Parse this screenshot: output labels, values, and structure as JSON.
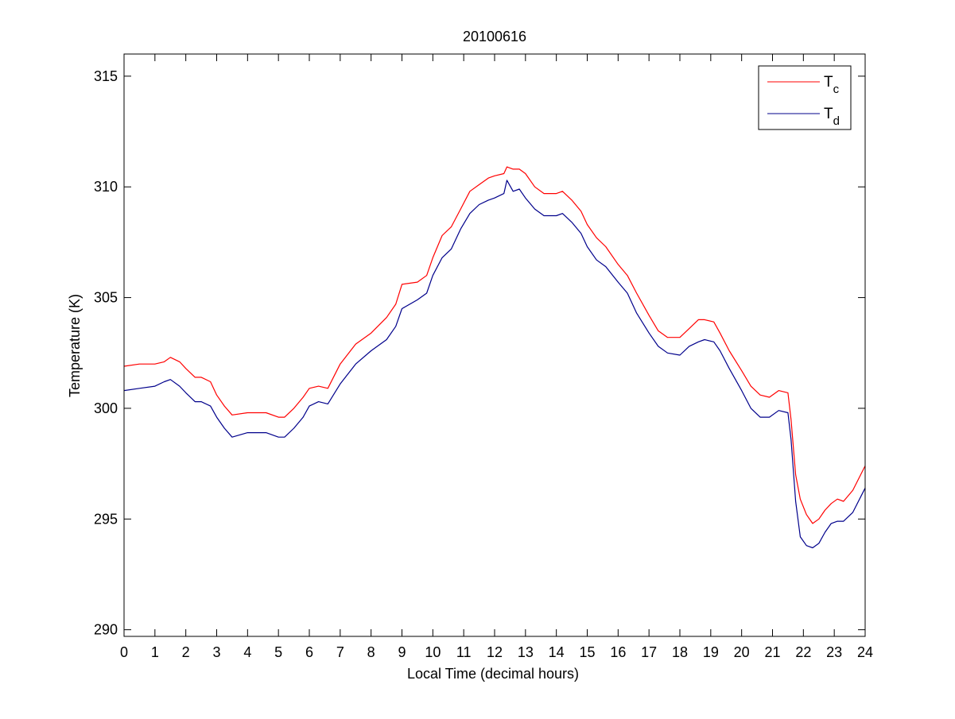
{
  "chart_data": {
    "type": "line",
    "title": "20100616",
    "xlabel": "Local Time (decimal hours)",
    "ylabel": "Temperature (K)",
    "xlim": [
      0,
      24
    ],
    "ylim": [
      289.7,
      316
    ],
    "xticks": [
      0,
      1,
      2,
      3,
      4,
      5,
      6,
      7,
      8,
      9,
      10,
      11,
      12,
      13,
      14,
      15,
      16,
      17,
      18,
      19,
      20,
      21,
      22,
      23,
      24
    ],
    "yticks": [
      290,
      295,
      300,
      305,
      310,
      315
    ],
    "grid": false,
    "legend": {
      "position": "top-right",
      "entries": [
        {
          "main": "T",
          "sub": "c"
        },
        {
          "main": "T",
          "sub": "d"
        }
      ]
    },
    "series": [
      {
        "name": "Tc",
        "color": "#ff0000",
        "x": [
          0,
          0.5,
          1,
          1.3,
          1.5,
          1.8,
          2,
          2.3,
          2.5,
          2.8,
          3,
          3.25,
          3.5,
          4,
          4.3,
          4.6,
          5,
          5.2,
          5.5,
          5.8,
          6,
          6.3,
          6.6,
          7,
          7.5,
          8,
          8.5,
          8.8,
          9,
          9.5,
          9.8,
          10,
          10.3,
          10.6,
          10.9,
          11.2,
          11.5,
          11.8,
          12,
          12.3,
          12.4,
          12.6,
          12.8,
          13,
          13.3,
          13.6,
          14,
          14.2,
          14.5,
          14.8,
          15,
          15.3,
          15.6,
          16,
          16.3,
          16.6,
          17,
          17.3,
          17.6,
          18,
          18.3,
          18.6,
          18.8,
          19.1,
          19.3,
          19.6,
          20,
          20.3,
          20.6,
          20.9,
          21.2,
          21.5,
          21.6,
          21.75,
          21.9,
          22.1,
          22.3,
          22.5,
          22.7,
          22.9,
          23.1,
          23.3,
          23.6,
          24
        ],
        "values": [
          301.9,
          302.0,
          302.0,
          302.1,
          302.3,
          302.1,
          301.8,
          301.4,
          301.4,
          301.2,
          300.6,
          300.1,
          299.7,
          299.8,
          299.8,
          299.8,
          299.6,
          299.6,
          300.0,
          300.5,
          300.9,
          301.0,
          300.9,
          302.0,
          302.9,
          303.4,
          304.1,
          304.7,
          305.6,
          305.7,
          306.0,
          306.8,
          307.8,
          308.2,
          309.0,
          309.8,
          310.1,
          310.4,
          310.5,
          310.6,
          310.9,
          310.8,
          310.8,
          310.6,
          310.0,
          309.7,
          309.7,
          309.8,
          309.4,
          308.9,
          308.3,
          307.7,
          307.3,
          306.5,
          306.0,
          305.2,
          304.2,
          303.5,
          303.2,
          303.2,
          303.6,
          304.0,
          304.0,
          303.9,
          303.4,
          302.6,
          301.7,
          301.0,
          300.6,
          300.5,
          300.8,
          300.7,
          299.5,
          297.0,
          295.9,
          295.2,
          294.8,
          295.0,
          295.4,
          295.7,
          295.9,
          295.8,
          296.3,
          297.4
        ]
      },
      {
        "name": "Td",
        "color": "#00008b",
        "x": [
          0,
          0.5,
          1,
          1.3,
          1.5,
          1.8,
          2,
          2.3,
          2.5,
          2.8,
          3,
          3.25,
          3.5,
          4,
          4.3,
          4.6,
          5,
          5.2,
          5.5,
          5.8,
          6,
          6.3,
          6.6,
          7,
          7.5,
          8,
          8.5,
          8.8,
          9,
          9.5,
          9.8,
          10,
          10.3,
          10.6,
          10.9,
          11.2,
          11.5,
          11.8,
          12,
          12.3,
          12.4,
          12.6,
          12.8,
          13,
          13.3,
          13.6,
          14,
          14.2,
          14.5,
          14.8,
          15,
          15.3,
          15.6,
          16,
          16.3,
          16.6,
          17,
          17.3,
          17.6,
          18,
          18.3,
          18.6,
          18.8,
          19.1,
          19.3,
          19.6,
          20,
          20.3,
          20.6,
          20.9,
          21.2,
          21.5,
          21.6,
          21.75,
          21.9,
          22.1,
          22.3,
          22.5,
          22.7,
          22.9,
          23.1,
          23.3,
          23.6,
          24
        ],
        "values": [
          300.8,
          300.9,
          301.0,
          301.2,
          301.3,
          301.0,
          300.7,
          300.3,
          300.3,
          300.1,
          299.6,
          299.1,
          298.7,
          298.9,
          298.9,
          298.9,
          298.7,
          298.7,
          299.1,
          299.6,
          300.1,
          300.3,
          300.2,
          301.1,
          302.0,
          302.6,
          303.1,
          303.7,
          304.5,
          304.9,
          305.2,
          306.0,
          306.8,
          307.2,
          308.1,
          308.8,
          309.2,
          309.4,
          309.5,
          309.7,
          310.3,
          309.8,
          309.9,
          309.5,
          309.0,
          308.7,
          308.7,
          308.8,
          308.4,
          307.9,
          307.3,
          306.7,
          306.4,
          305.7,
          305.2,
          304.3,
          303.4,
          302.8,
          302.5,
          302.4,
          302.8,
          303.0,
          303.1,
          303.0,
          302.6,
          301.8,
          300.8,
          300.0,
          299.6,
          299.6,
          299.9,
          299.8,
          298.6,
          295.8,
          294.2,
          293.8,
          293.7,
          293.9,
          294.4,
          294.8,
          294.9,
          294.9,
          295.3,
          296.4
        ]
      }
    ]
  }
}
